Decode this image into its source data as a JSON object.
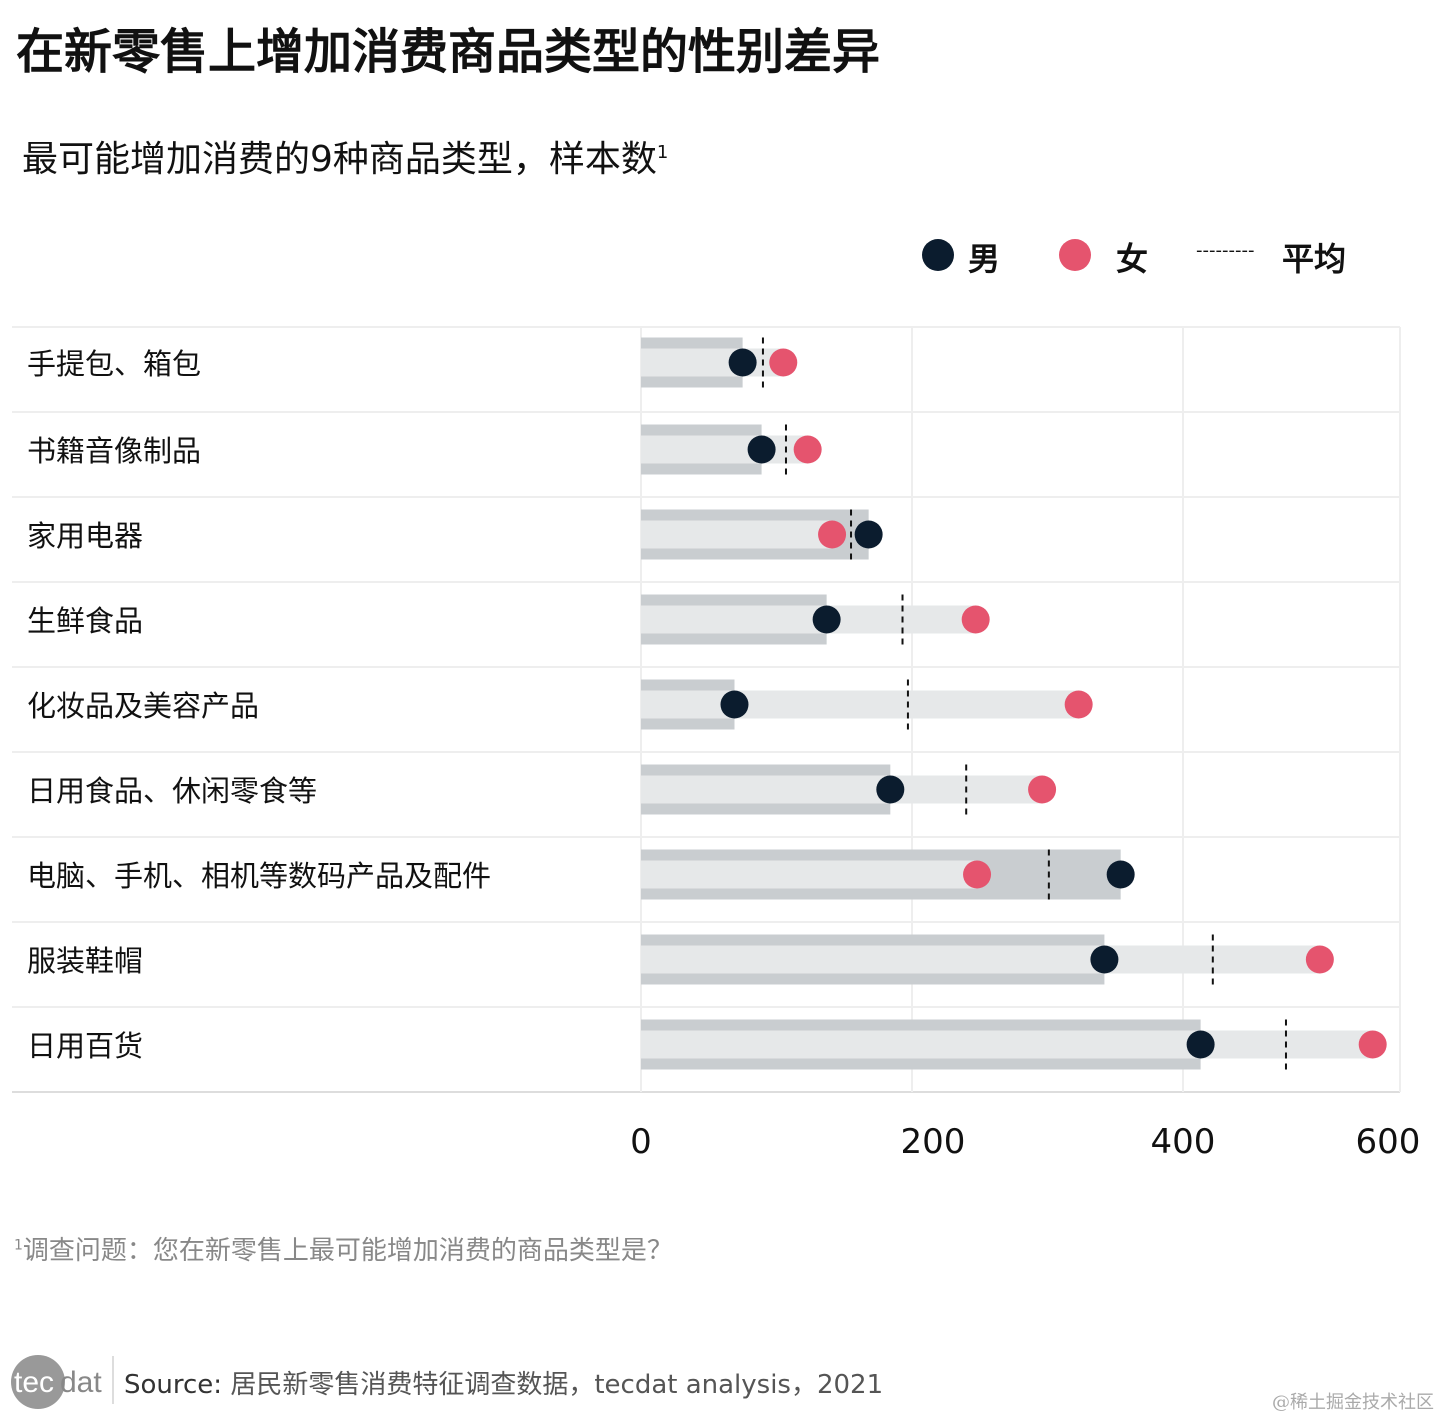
{
  "title": "在新零售上增加消费商品类型的性别差异",
  "subtitle": "最可能增加消费的9种商品类型，样本数",
  "subtitle_sup": "1",
  "legend": {
    "male": "男",
    "female": "女",
    "average": "平均",
    "average_line": "---------"
  },
  "colors": {
    "male": "#0b1c2e",
    "female": "#e5546e",
    "bar": "#c9cdd0",
    "band": "#e6e8e9",
    "grid": "#eeeeee"
  },
  "chart_data": {
    "type": "dot-bar",
    "categories": [
      "手提包、箱包",
      "书籍音像制品",
      "家用电器",
      "生鲜食品",
      "化妆品及美容产品",
      "日用食品、休闲零食等",
      "电脑、手机、相机等数码产品及配件",
      "服装鞋帽",
      "日用百货"
    ],
    "series": [
      {
        "name": "男",
        "values": [
          75,
          89,
          168,
          137,
          69,
          184,
          354,
          342,
          413
        ]
      },
      {
        "name": "女",
        "values": [
          105,
          123,
          141,
          247,
          323,
          296,
          248,
          501,
          540
        ]
      },
      {
        "name": "平均",
        "values": [
          90,
          107,
          155,
          193,
          197,
          240,
          301,
          422,
          476
        ]
      }
    ],
    "xticks": [
      "0",
      "200",
      "400",
      "600"
    ],
    "xlim": [
      0,
      600
    ],
    "grid": true,
    "legend_position": "top-right"
  },
  "footnote": {
    "sup": "1",
    "text": "调查问题：您在新零售上最可能增加消费的商品类型是？"
  },
  "source": {
    "label": "Source:",
    "text": " 居民新零售消费特征调查数据，tecdat analysis，2021"
  },
  "logo_text": "tecdat",
  "watermark": "@稀土掘金技术社区"
}
